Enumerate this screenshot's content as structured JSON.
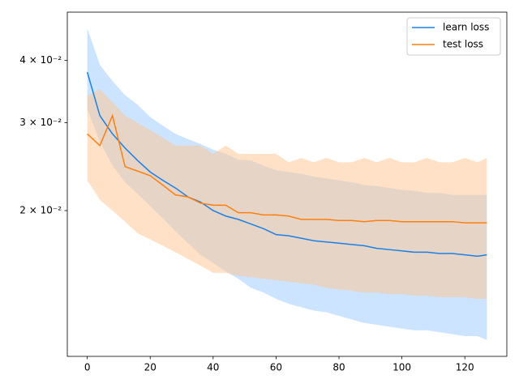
{
  "chart_data": {
    "type": "line_band",
    "log_y": true,
    "legend": "upper right",
    "x": [
      0,
      4,
      8,
      12,
      16,
      20,
      24,
      28,
      32,
      36,
      40,
      44,
      48,
      52,
      56,
      60,
      64,
      68,
      72,
      76,
      80,
      84,
      88,
      92,
      96,
      100,
      104,
      108,
      112,
      116,
      120,
      124,
      127
    ],
    "xlim": [
      -6.35,
      133.35
    ],
    "xticks": [
      0,
      20,
      40,
      60,
      80,
      100,
      120
    ],
    "ylim": [
      0.0102,
      0.05
    ],
    "yticks": [
      {
        "value": 0.02,
        "label": "2 × 10⁻²"
      },
      {
        "value": 0.03,
        "label": "3 × 10⁻²"
      },
      {
        "value": 0.04,
        "label": "4 × 10⁻²"
      }
    ],
    "series": [
      {
        "name": "learn loss",
        "color": "#1a80e5",
        "band_color": "#99c9ff",
        "values": [
          0.0379,
          0.031,
          0.0285,
          0.0267,
          0.0252,
          0.0239,
          0.023,
          0.0222,
          0.0213,
          0.0208,
          0.02,
          0.0195,
          0.0192,
          0.0188,
          0.0184,
          0.0179,
          0.0178,
          0.0176,
          0.0174,
          0.0173,
          0.0172,
          0.0171,
          0.017,
          0.0168,
          0.0167,
          0.0166,
          0.0165,
          0.0165,
          0.0164,
          0.0164,
          0.0163,
          0.0162,
          0.0163
        ],
        "upper": [
          0.0464,
          0.0392,
          0.0364,
          0.0341,
          0.0326,
          0.0308,
          0.0296,
          0.0285,
          0.0278,
          0.0272,
          0.0265,
          0.026,
          0.0253,
          0.0252,
          0.0246,
          0.0241,
          0.0239,
          0.0237,
          0.0234,
          0.0232,
          0.023,
          0.0228,
          0.0225,
          0.0224,
          0.0222,
          0.022,
          0.0219,
          0.0217,
          0.0217,
          0.0215,
          0.0215,
          0.0215,
          0.0215
        ],
        "lower": [
          0.0319,
          0.0275,
          0.0246,
          0.0228,
          0.0216,
          0.0204,
          0.0193,
          0.0182,
          0.0172,
          0.0163,
          0.0157,
          0.0151,
          0.0146,
          0.014,
          0.0137,
          0.0133,
          0.013,
          0.0128,
          0.0126,
          0.0125,
          0.0123,
          0.0121,
          0.0119,
          0.0118,
          0.0117,
          0.0116,
          0.0115,
          0.0115,
          0.0114,
          0.0113,
          0.0112,
          0.0112,
          0.011
        ]
      },
      {
        "name": "test loss",
        "color": "#ff7f0e",
        "band_color": "#ffc48f",
        "values": [
          0.0285,
          0.027,
          0.031,
          0.0245,
          0.024,
          0.0235,
          0.0225,
          0.0215,
          0.0213,
          0.0207,
          0.0205,
          0.0205,
          0.0198,
          0.0198,
          0.0196,
          0.0196,
          0.0195,
          0.0192,
          0.0192,
          0.0192,
          0.0191,
          0.0191,
          0.019,
          0.0191,
          0.0191,
          0.019,
          0.019,
          0.019,
          0.019,
          0.019,
          0.0189,
          0.0189,
          0.0189
        ],
        "upper": [
          0.034,
          0.035,
          0.033,
          0.031,
          0.03,
          0.029,
          0.028,
          0.027,
          0.027,
          0.027,
          0.026,
          0.027,
          0.026,
          0.026,
          0.026,
          0.026,
          0.025,
          0.0255,
          0.025,
          0.0255,
          0.025,
          0.025,
          0.0255,
          0.025,
          0.0255,
          0.025,
          0.025,
          0.0255,
          0.025,
          0.025,
          0.0255,
          0.025,
          0.0255
        ],
        "lower": [
          0.023,
          0.021,
          0.02,
          0.019,
          0.018,
          0.0175,
          0.017,
          0.0165,
          0.016,
          0.0155,
          0.015,
          0.015,
          0.0148,
          0.0147,
          0.0146,
          0.0145,
          0.0144,
          0.0143,
          0.0142,
          0.014,
          0.0139,
          0.0138,
          0.0137,
          0.0137,
          0.0136,
          0.0136,
          0.0135,
          0.0135,
          0.0134,
          0.0134,
          0.0134,
          0.0133,
          0.0133
        ]
      }
    ]
  }
}
